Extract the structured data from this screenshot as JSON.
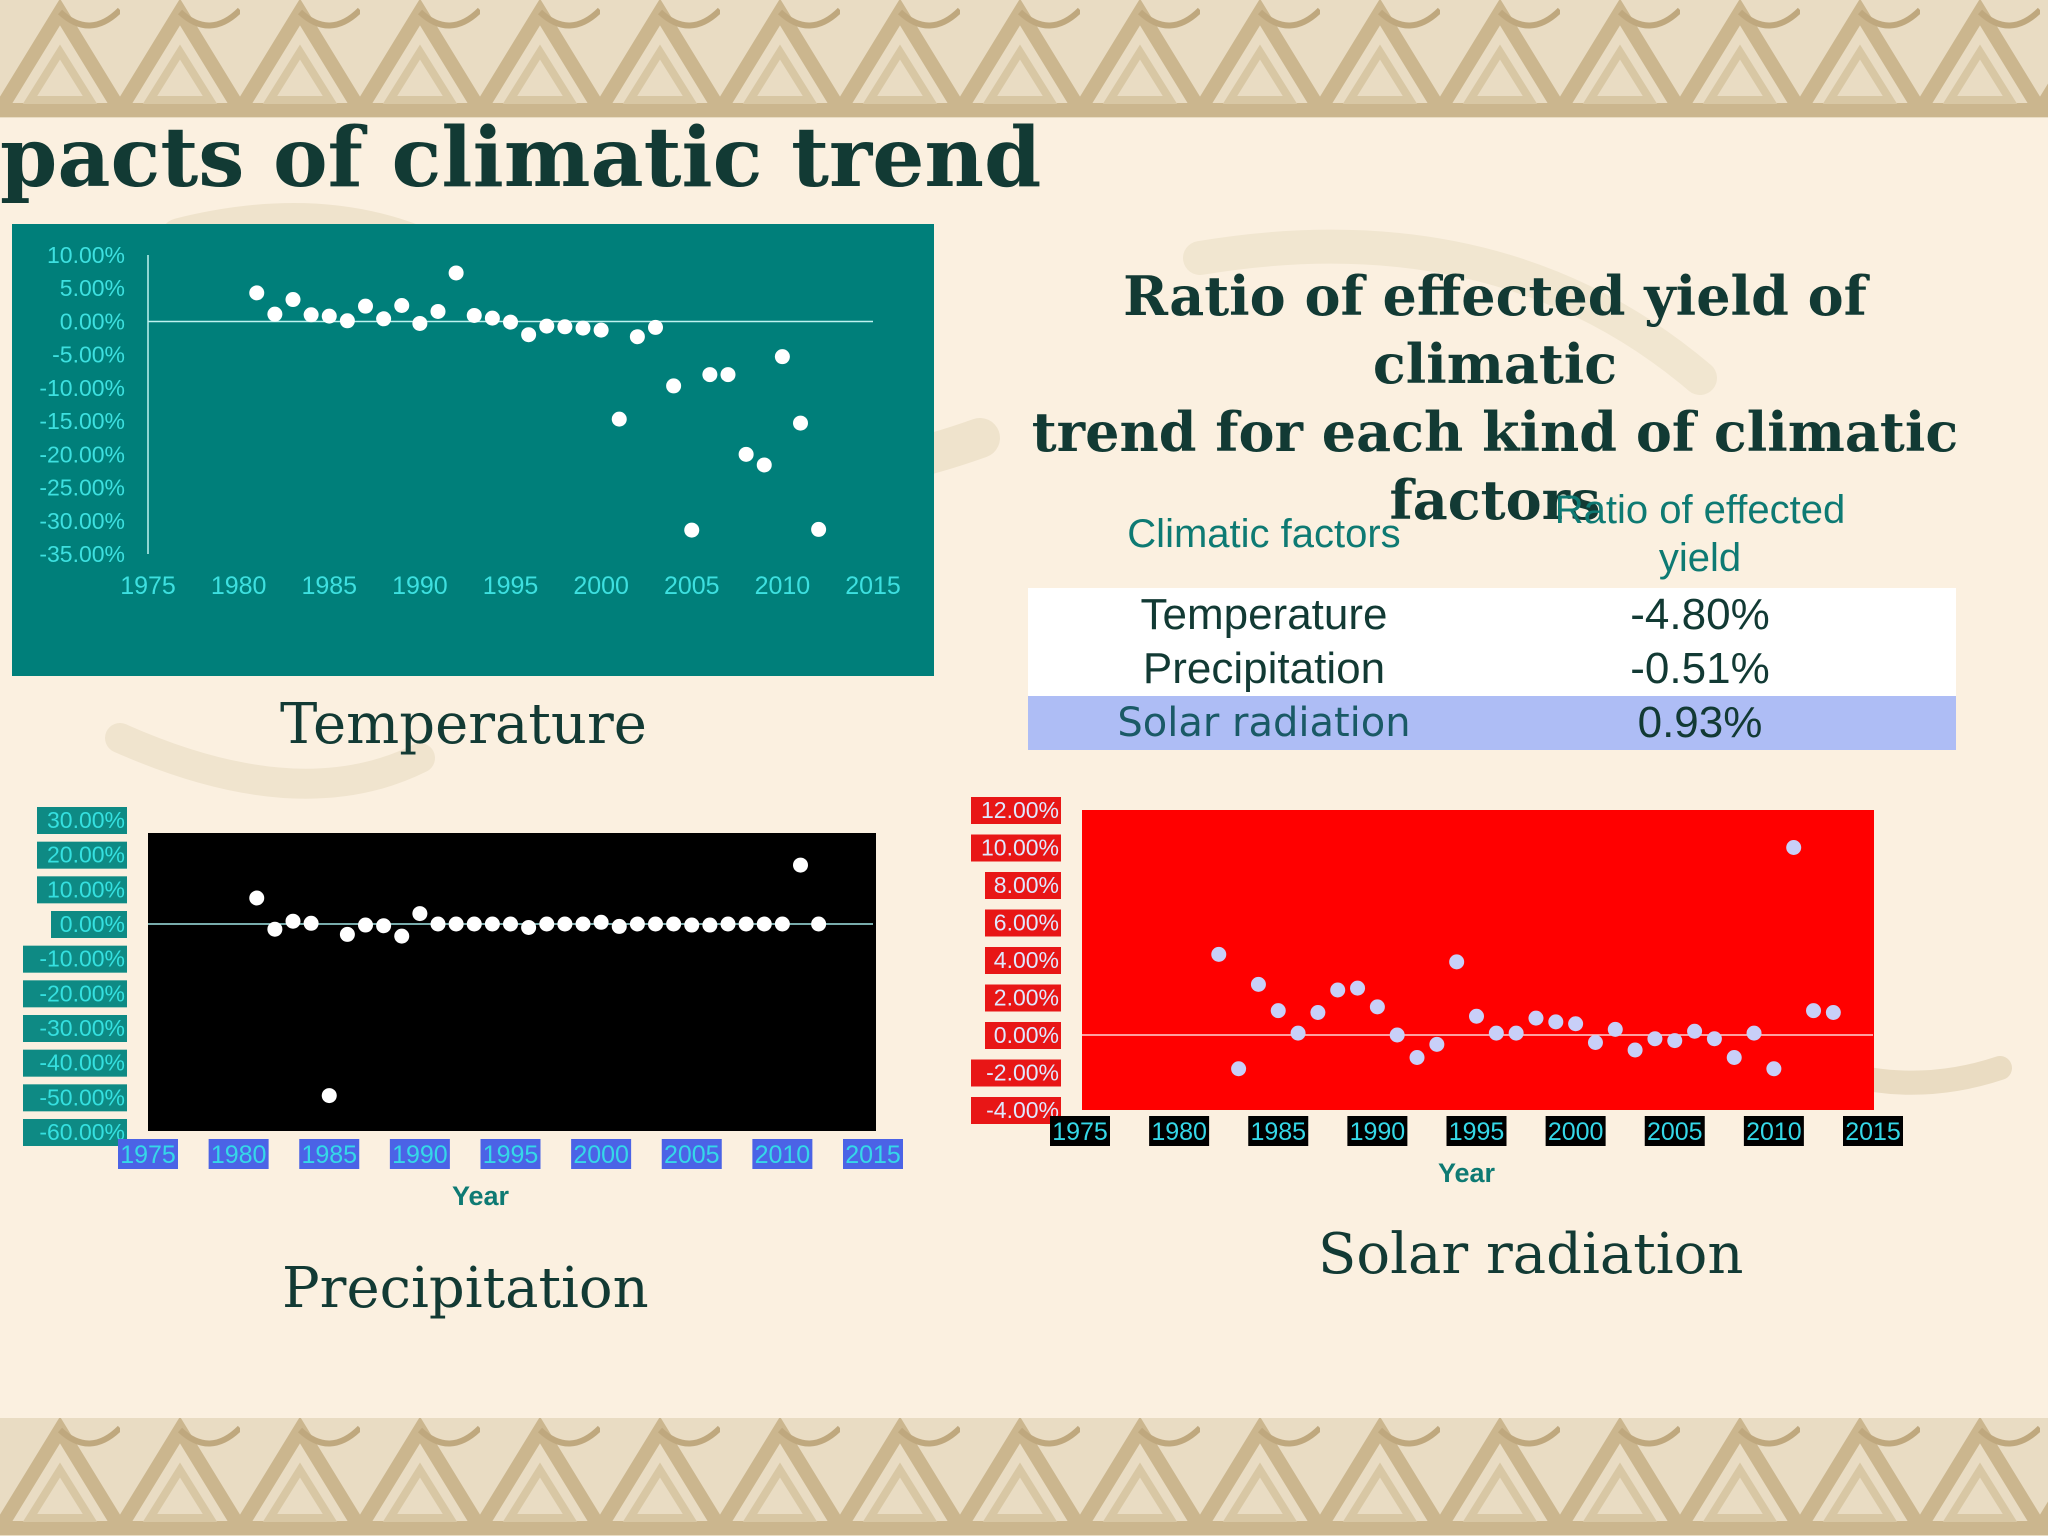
{
  "slide": {
    "title": "pacts of climatic trend",
    "table_title_line1": "Ratio of effected yield  of climatic",
    "table_title_line2": "trend for each kind of climatic factors"
  },
  "captions": {
    "temperature": "Temperature",
    "precipitation": "Precipitation",
    "solar": "Solar radiation"
  },
  "table": {
    "headers": [
      "Climatic factors",
      "Ratio of effected",
      "yield"
    ],
    "rows": [
      {
        "factor": "Temperature",
        "ratio": "-4.80%"
      },
      {
        "factor": "Precipitation",
        "ratio": "-0.51%"
      },
      {
        "factor": "Solar radiation",
        "ratio": "0.93%"
      }
    ],
    "colors": {
      "row_white": "#ffffff",
      "row_highlight": "#aebdf5",
      "header_text": "#0e7a73"
    }
  },
  "chart_data": [
    {
      "id": "temperature",
      "type": "scatter",
      "title": "",
      "xlabel": "",
      "ylabel": "",
      "xlim": [
        1975,
        2015
      ],
      "ylim": [
        -35,
        10
      ],
      "x_ticks": [
        "1975",
        "1980",
        "1985",
        "1990",
        "1995",
        "2000",
        "2005",
        "2010",
        "2015"
      ],
      "y_ticks": [
        "10.00%",
        "5.00%",
        "0.00%",
        "-5.00%",
        "-10.00%",
        "-15.00%",
        "-20.00%",
        "-25.00%",
        "-30.00%",
        "-35.00%"
      ],
      "grid": false,
      "colors": {
        "background": "#007f7a",
        "points": "#ffffff",
        "ticks": "#3de0e0",
        "axis": "#bff2f0"
      },
      "points": [
        [
          1981,
          4.3
        ],
        [
          1982,
          1.1
        ],
        [
          1983,
          3.3
        ],
        [
          1984,
          1.0
        ],
        [
          1985,
          0.8
        ],
        [
          1986,
          0.1
        ],
        [
          1987,
          2.3
        ],
        [
          1988,
          0.4
        ],
        [
          1989,
          2.4
        ],
        [
          1990,
          -0.3
        ],
        [
          1991,
          1.5
        ],
        [
          1992,
          7.3
        ],
        [
          1993,
          0.9
        ],
        [
          1994,
          0.5
        ],
        [
          1995,
          -0.1
        ],
        [
          1996,
          -2.0
        ],
        [
          1997,
          -0.7
        ],
        [
          1998,
          -0.8
        ],
        [
          1999,
          -1.0
        ],
        [
          2000,
          -1.3
        ],
        [
          2001,
          -14.7
        ],
        [
          2002,
          -2.3
        ],
        [
          2003,
          -0.9
        ],
        [
          2004,
          -9.7
        ],
        [
          2005,
          -31.4
        ],
        [
          2006,
          -8.0
        ],
        [
          2007,
          -8.0
        ],
        [
          2008,
          -20.0
        ],
        [
          2009,
          -21.6
        ],
        [
          2010,
          -5.3
        ],
        [
          2011,
          -15.3
        ],
        [
          2012,
          -31.3
        ]
      ]
    },
    {
      "id": "precipitation",
      "type": "scatter",
      "title": "",
      "xlabel": "Year",
      "ylabel": "",
      "xlim": [
        1975,
        2015
      ],
      "ylim": [
        -60,
        30
      ],
      "x_ticks": [
        "1975",
        "1980",
        "1985",
        "1990",
        "1995",
        "2000",
        "2005",
        "2010",
        "2015"
      ],
      "y_ticks": [
        "30.00%",
        "20.00%",
        "10.00%",
        "0.00%",
        "-10.00%",
        "-20.00%",
        "-30.00%",
        "-40.00%",
        "-50.00%",
        "-60.00%"
      ],
      "grid": false,
      "colors": {
        "background": "#000000",
        "points": "#ffffff",
        "ytick_box": "#0e8a84",
        "ytick_text": "#35e0e0",
        "xtick_box": "#4b63e6",
        "xtick_text": "#35d8e8",
        "xlabel": "#0e7a73",
        "axis": "#a0e6e6"
      },
      "points": [
        [
          1981,
          7.5
        ],
        [
          1982,
          -1.5
        ],
        [
          1983,
          0.8
        ],
        [
          1984,
          0.2
        ],
        [
          1985,
          -49.5
        ],
        [
          1986,
          -3.0
        ],
        [
          1987,
          -0.3
        ],
        [
          1988,
          -0.5
        ],
        [
          1989,
          -3.5
        ],
        [
          1990,
          3.0
        ],
        [
          1991,
          0.0
        ],
        [
          1992,
          0.0
        ],
        [
          1993,
          0.0
        ],
        [
          1994,
          0.0
        ],
        [
          1995,
          0.0
        ],
        [
          1996,
          -1.0
        ],
        [
          1997,
          0.0
        ],
        [
          1998,
          0.0
        ],
        [
          1999,
          0.0
        ],
        [
          2000,
          0.5
        ],
        [
          2001,
          -0.7
        ],
        [
          2002,
          0.0
        ],
        [
          2003,
          0.0
        ],
        [
          2004,
          0.0
        ],
        [
          2005,
          -0.3
        ],
        [
          2006,
          -0.3
        ],
        [
          2007,
          0.0
        ],
        [
          2008,
          0.0
        ],
        [
          2009,
          0.0
        ],
        [
          2010,
          0.0
        ],
        [
          2011,
          17.0
        ],
        [
          2012,
          0.0
        ]
      ]
    },
    {
      "id": "solar",
      "type": "scatter",
      "title": "",
      "xlabel": "Year",
      "ylabel": "",
      "xlim": [
        1975,
        2015
      ],
      "ylim": [
        -4,
        12
      ],
      "x_ticks": [
        "1975",
        "1980",
        "1985",
        "1990",
        "1995",
        "2000",
        "2005",
        "2010",
        "2015"
      ],
      "y_ticks": [
        "12.00%",
        "10.00%",
        "8.00%",
        "6.00%",
        "4.00%",
        "2.00%",
        "0.00%",
        "-2.00%",
        "-4.00%"
      ],
      "grid": false,
      "colors": {
        "background": "#ff0000",
        "points": "#c8cff8",
        "ytick_box": "#e81616",
        "ytick_text": "#e0e8ff",
        "xtick_box": "#000000",
        "xtick_text": "#35d8e8",
        "xlabel": "#0e7a73",
        "axis": "#ffd4d4"
      },
      "points": [
        [
          1982,
          4.3
        ],
        [
          1983,
          -1.8
        ],
        [
          1984,
          2.7
        ],
        [
          1985,
          1.3
        ],
        [
          1986,
          0.1
        ],
        [
          1987,
          1.2
        ],
        [
          1988,
          2.4
        ],
        [
          1989,
          2.5
        ],
        [
          1990,
          1.5
        ],
        [
          1991,
          0.0
        ],
        [
          1992,
          -1.2
        ],
        [
          1993,
          -0.5
        ],
        [
          1994,
          3.9
        ],
        [
          1995,
          1.0
        ],
        [
          1996,
          0.1
        ],
        [
          1997,
          0.1
        ],
        [
          1998,
          0.9
        ],
        [
          1999,
          0.7
        ],
        [
          2000,
          0.6
        ],
        [
          2001,
          -0.4
        ],
        [
          2002,
          0.3
        ],
        [
          2003,
          -0.8
        ],
        [
          2004,
          -0.2
        ],
        [
          2005,
          -0.3
        ],
        [
          2006,
          0.2
        ],
        [
          2007,
          -0.2
        ],
        [
          2008,
          -1.2
        ],
        [
          2009,
          0.1
        ],
        [
          2010,
          -1.8
        ],
        [
          2011,
          10.0
        ],
        [
          2012,
          1.3
        ],
        [
          2013,
          1.2
        ]
      ]
    }
  ]
}
